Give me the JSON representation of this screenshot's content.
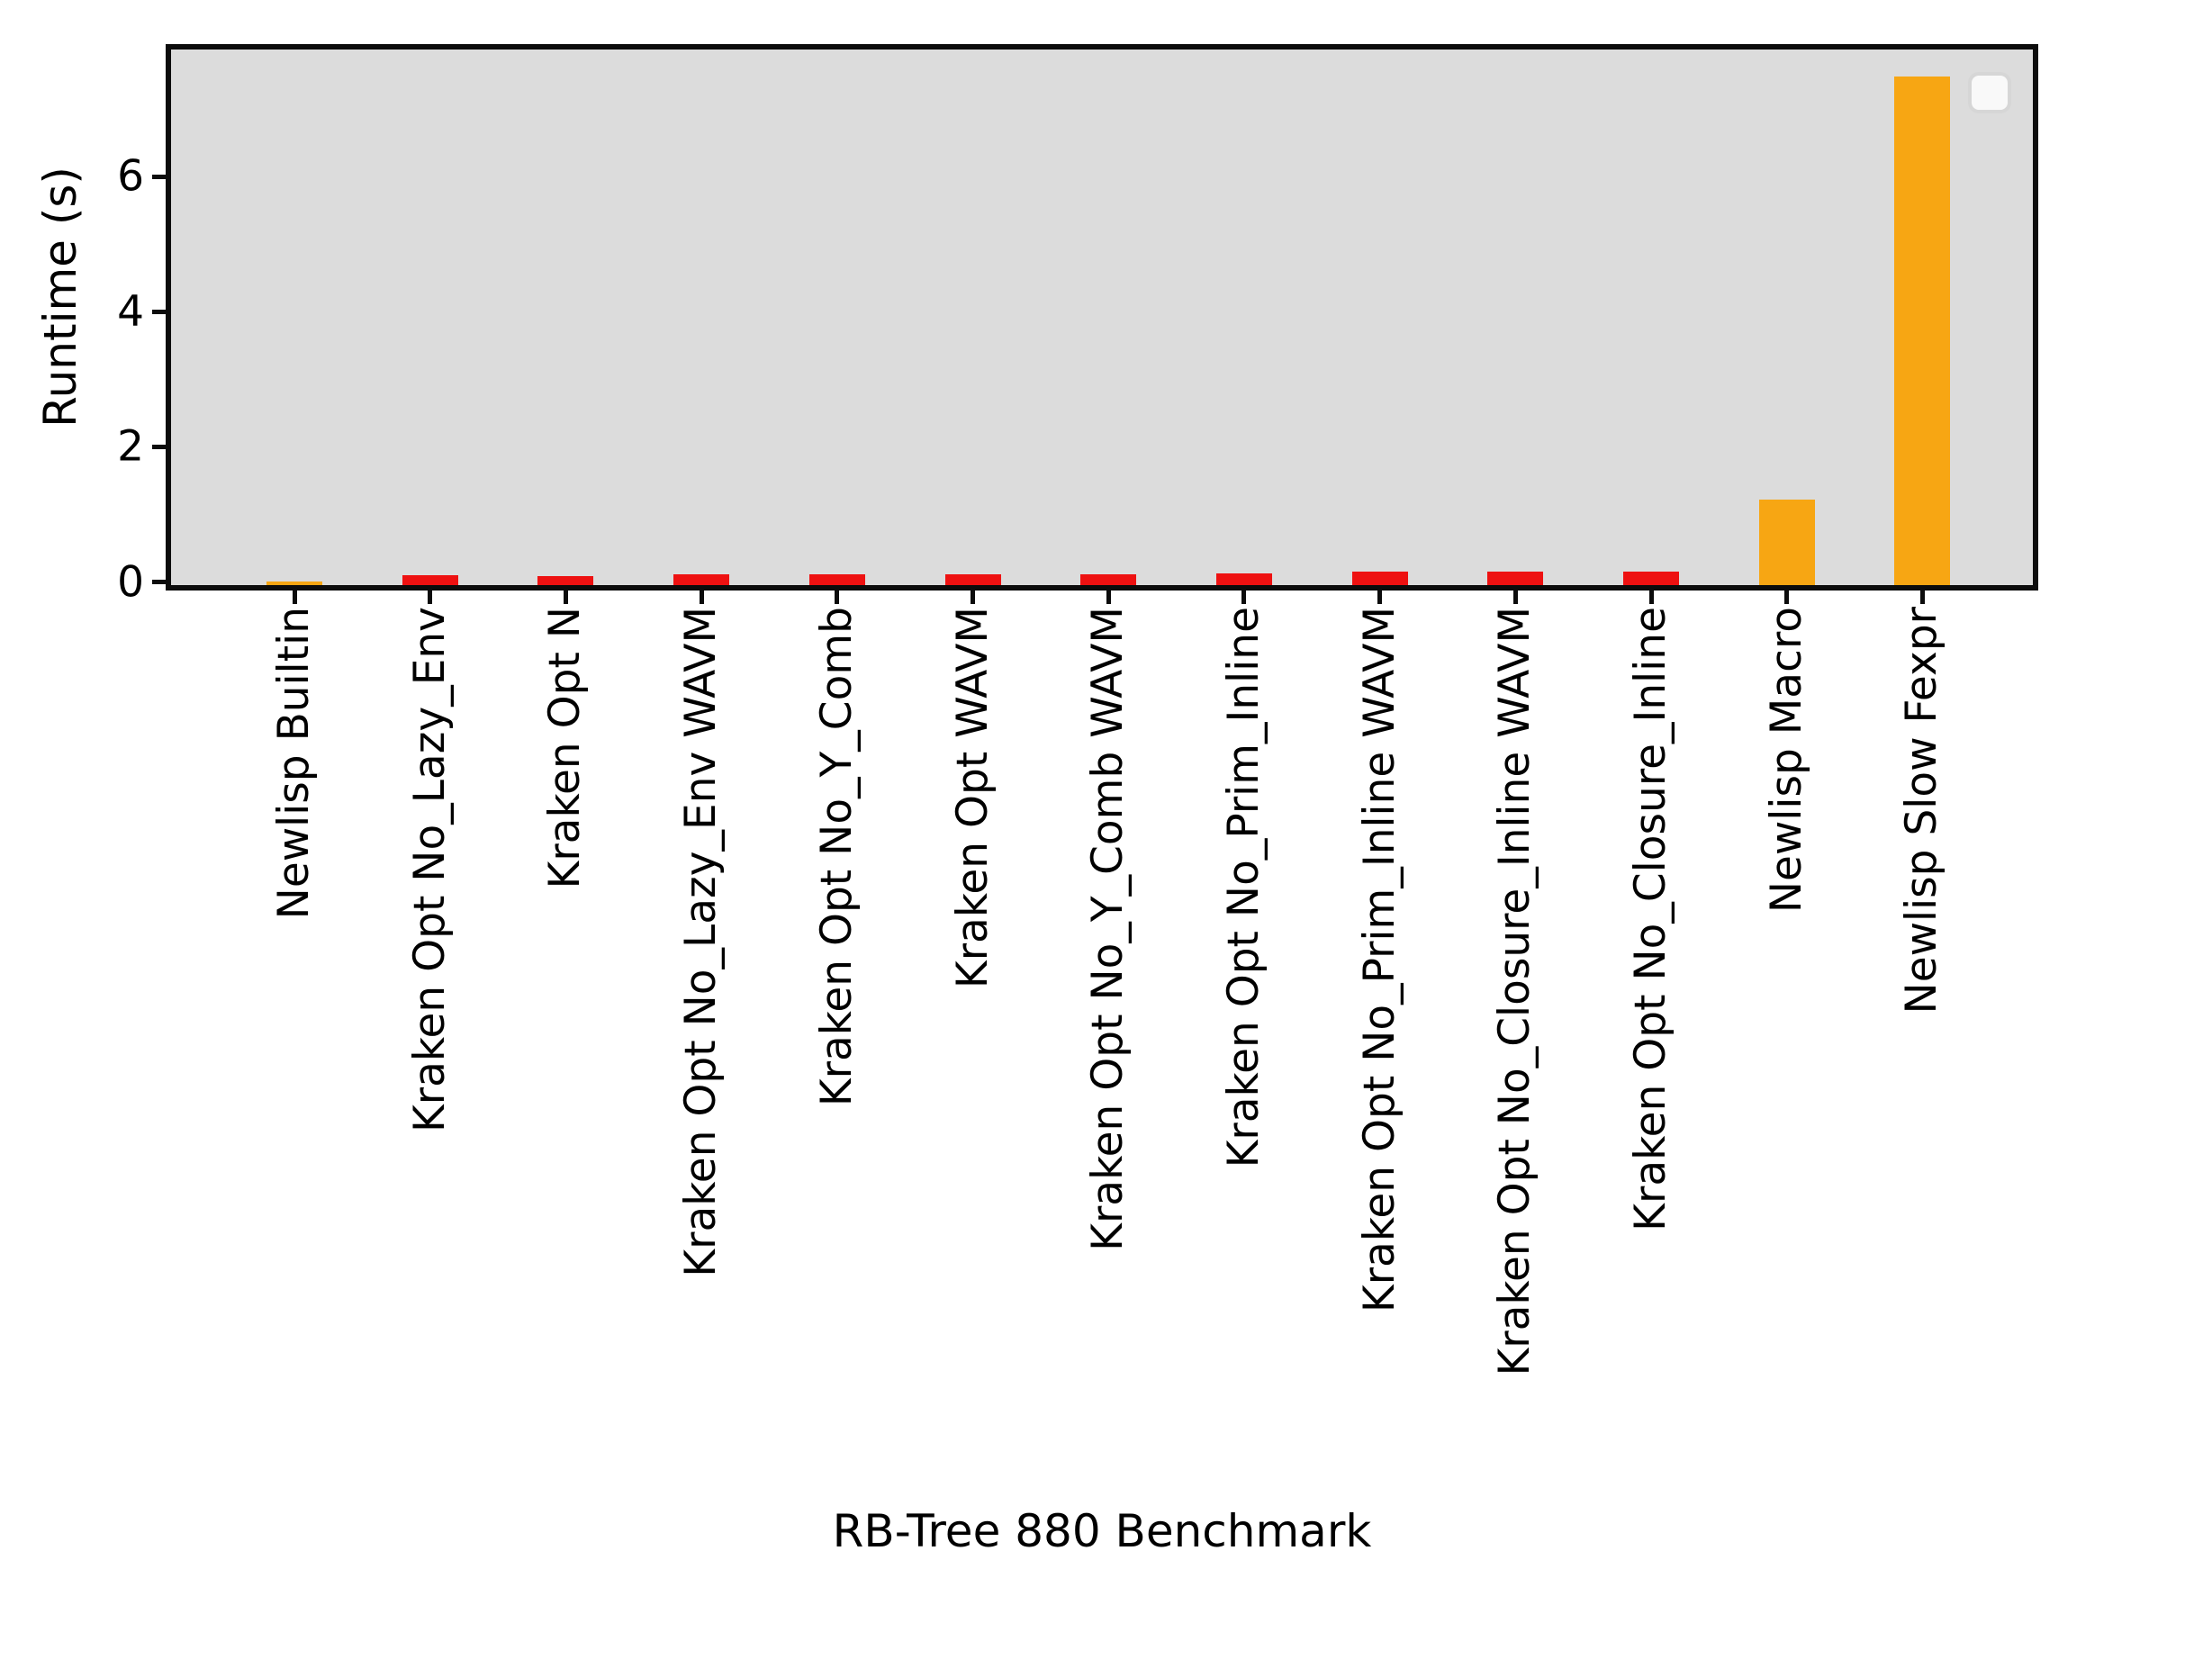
{
  "chart_data": {
    "type": "bar",
    "title": "",
    "xlabel": "RB-Tree 880 Benchmark",
    "ylabel": "Runtime (s)",
    "categories": [
      "Newlisp Builtin",
      "Kraken Opt No_Lazy_Env",
      "Kraken Opt N",
      "Kraken Opt No_Lazy_Env WAVM",
      "Kraken Opt No_Y_Comb",
      "Kraken Opt WAVM",
      "Kraken Opt No_Y_Comb WAVM",
      "Kraken Opt No_Prim_Inline",
      "Kraken Opt No_Prim_Inline WAVM",
      "Kraken Opt No_Closure_Inline WAVM",
      "Kraken Opt No_Closure_Inline",
      "Newlisp Macro",
      "Newlisp Slow Fexpr"
    ],
    "values": [
      0.005,
      0.1,
      0.09,
      0.11,
      0.11,
      0.11,
      0.11,
      0.13,
      0.15,
      0.15,
      0.15,
      1.22,
      7.48
    ],
    "bar_colors": [
      "#f7a613",
      "#ee1111",
      "#ee1111",
      "#ee1111",
      "#ee1111",
      "#ee1111",
      "#ee1111",
      "#ee1111",
      "#ee1111",
      "#ee1111",
      "#ee1111",
      "#f7a613",
      "#f7a613"
    ],
    "yticks": [
      0,
      2,
      4,
      6
    ],
    "ylim": [
      0,
      7.9
    ],
    "xtick_rotation_deg": 90,
    "grid": false,
    "plot_background": "#dcdcdc",
    "figure_background": "#ffffff",
    "legend": {
      "visible": true,
      "entries": [],
      "position": "upper right"
    }
  }
}
